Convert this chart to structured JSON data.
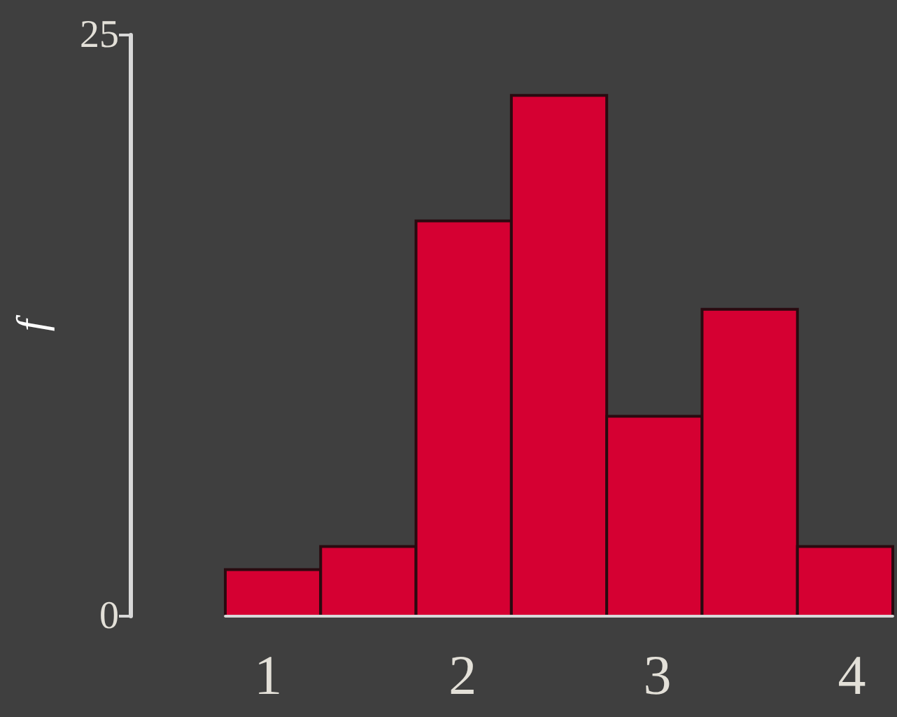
{
  "chart_data": {
    "type": "histogram",
    "ylabel": "f",
    "bins": [
      0.78,
      1.27,
      1.76,
      2.25,
      2.74,
      3.23,
      3.72,
      4.21
    ],
    "values": [
      2,
      3,
      17,
      22.4,
      8.6,
      13.2,
      3
    ],
    "color": "#d50032",
    "xlim": [
      0.78,
      4.21
    ],
    "xticks": [
      1,
      2,
      3,
      4
    ],
    "ylim": [
      0,
      25
    ],
    "yticks": [
      0,
      25
    ],
    "grid": false
  }
}
